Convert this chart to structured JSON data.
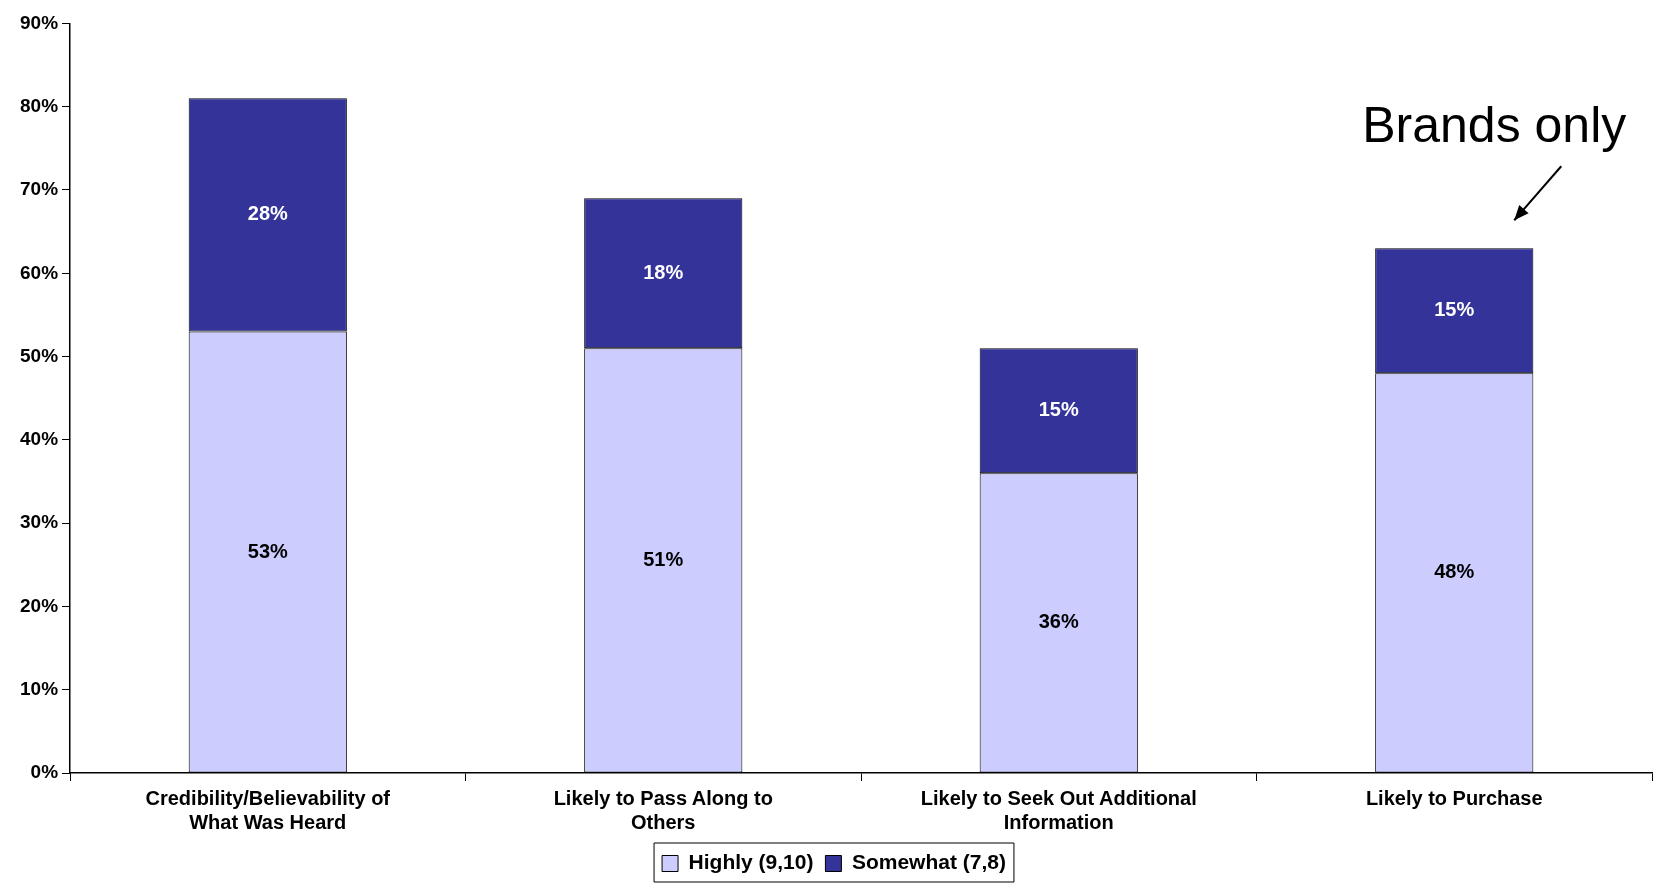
{
  "chart_data": {
    "type": "bar",
    "stacked": true,
    "categories": [
      "Credibility/Believability of What Was Heard",
      "Likely to Pass Along to Others",
      "Likely to Seek Out Additional Information",
      "Likely to Purchase"
    ],
    "series": [
      {
        "name": "Highly (9,10)",
        "color": "#ccccff",
        "values": [
          53,
          51,
          36,
          48
        ],
        "value_labels": [
          "53%",
          "51%",
          "36%",
          "48%"
        ]
      },
      {
        "name": "Somewhat (7,8)",
        "color": "#333399",
        "values": [
          28,
          18,
          15,
          15
        ],
        "value_labels": [
          "28%",
          "18%",
          "15%",
          "15%"
        ]
      }
    ],
    "ylim": [
      0,
      90
    ],
    "yticks": [
      {
        "value": 0,
        "label": "0%"
      },
      {
        "value": 10,
        "label": "10%"
      },
      {
        "value": 20,
        "label": "20%"
      },
      {
        "value": 30,
        "label": "30%"
      },
      {
        "value": 40,
        "label": "40%"
      },
      {
        "value": 50,
        "label": "50%"
      },
      {
        "value": 60,
        "label": "60%"
      },
      {
        "value": 70,
        "label": "70%"
      },
      {
        "value": 80,
        "label": "80%"
      },
      {
        "value": 90,
        "label": "90%"
      }
    ],
    "legend": "bottom",
    "grid": false,
    "annotations": [
      {
        "text": "Brands only",
        "x": "Likely to Purchase",
        "y": 63
      }
    ]
  }
}
